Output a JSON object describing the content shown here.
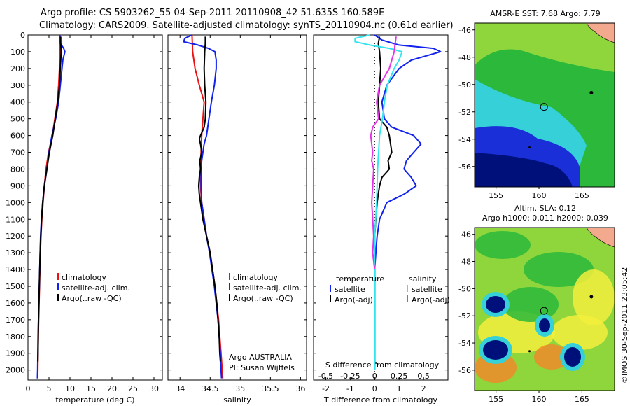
{
  "header": {
    "line1": "Argo profile: CS 5903262_55 04-Sep-2011 20110908_42 51.635S 160.589E",
    "line2": "Climatology: CARS2009. Satellite-adjusted climatology: synTS_20110904.nc (0.61d earlier)"
  },
  "maps": {
    "sst_title": "AMSR-E SST: 7.68  Argo: 7.79",
    "sla_title_line1": "Altim. SLA: 0.12",
    "sla_title_line2": "Argo h1000: 0.011  h2000: 0.039",
    "credit": "©IMOS 30-Sep-2011 23:05:42",
    "lat_ticks": [
      -46,
      -48,
      -50,
      -52,
      -54,
      -56
    ],
    "lon_ticks": [
      155,
      160,
      165
    ],
    "xlim": [
      152.5,
      168.8
    ],
    "ylim": [
      -57.5,
      -45.5
    ],
    "float_position": {
      "lon": 160.589,
      "lat": -51.635
    },
    "colors": {
      "deep": "#00107a",
      "cold": "#1a2fd8",
      "cyan": "#35d0d8",
      "green": "#2bb83b",
      "lime": "#8fd63c",
      "yellow": "#f4ee3c",
      "orange": "#f08a2a",
      "land": "#f3a98e"
    }
  },
  "colors": {
    "climatology": "#ee1111",
    "satellite": "#1122ee",
    "argo": "#000000",
    "s_satellite": "#33e6ee",
    "s_argo": "#e233e6"
  },
  "chart_data": [
    {
      "type": "line",
      "xlabel": "temperature (deg C)",
      "ylabel": "",
      "xlim": [
        0,
        32
      ],
      "ylim": [
        2060,
        0
      ],
      "xticks": [
        0,
        5,
        10,
        15,
        20,
        25,
        30
      ],
      "yticks": [
        0,
        100,
        200,
        300,
        400,
        500,
        600,
        700,
        800,
        900,
        1000,
        1100,
        1200,
        1300,
        1400,
        1500,
        1600,
        1700,
        1800,
        1900,
        2000
      ],
      "legend": [
        "climatology",
        "satellite-adj. clim.",
        "Argo(..raw -QC)"
      ],
      "series": [
        {
          "name": "climatology",
          "color": "#ee1111",
          "depth": [
            0,
            100,
            200,
            300,
            400,
            500,
            600,
            700,
            800,
            900,
            1000,
            1100,
            1200,
            1300,
            1400,
            1500,
            1600,
            1700,
            1800,
            1900,
            2000,
            2050
          ],
          "values": [
            7.6,
            7.6,
            7.5,
            7.3,
            7.0,
            6.4,
            5.8,
            4.9,
            4.3,
            3.9,
            3.6,
            3.3,
            3.1,
            2.95,
            2.85,
            2.75,
            2.65,
            2.55,
            2.45,
            2.4,
            2.35,
            2.3
          ]
        },
        {
          "name": "satellite-adj. clim.",
          "color": "#1122ee",
          "depth": [
            0,
            50,
            80,
            100,
            150,
            200,
            300,
            400,
            500,
            600,
            700,
            800,
            900,
            1000,
            1100,
            1200,
            1300,
            1400,
            1500,
            1600,
            1700,
            1800,
            1900,
            2000,
            2050
          ],
          "values": [
            7.6,
            7.7,
            8.5,
            8.8,
            8.3,
            8.1,
            7.7,
            7.3,
            6.6,
            5.7,
            5.0,
            4.5,
            3.9,
            3.5,
            3.2,
            3.0,
            2.9,
            2.8,
            2.7,
            2.6,
            2.5,
            2.4,
            2.35,
            2.3,
            2.25
          ]
        },
        {
          "name": "Argo(..raw -QC)",
          "color": "#000000",
          "depth": [
            10,
            50,
            100,
            150,
            200,
            300,
            400,
            500,
            600,
            700,
            800,
            900,
            1000,
            1100,
            1200,
            1300,
            1400,
            1500,
            1600,
            1700,
            1800,
            1900,
            1950
          ],
          "values": [
            7.79,
            7.8,
            7.9,
            7.8,
            7.7,
            7.5,
            7.1,
            6.5,
            5.9,
            5.1,
            4.5,
            3.9,
            3.5,
            3.25,
            3.05,
            2.9,
            2.8,
            2.7,
            2.6,
            2.5,
            2.45,
            2.4,
            2.35
          ]
        }
      ]
    },
    {
      "type": "line",
      "xlabel": "salinity",
      "ylabel": "",
      "xlim": [
        33.8,
        36.1
      ],
      "ylim": [
        2060,
        0
      ],
      "xticks": [
        34,
        34.5,
        35,
        35.5,
        36
      ],
      "yticks": [
        0,
        100,
        200,
        300,
        400,
        500,
        600,
        700,
        800,
        900,
        1000,
        1100,
        1200,
        1300,
        1400,
        1500,
        1600,
        1700,
        1800,
        1900,
        2000
      ],
      "legend": [
        "climatology",
        "satellite-adj. clim.",
        "Argo(..raw -QC)"
      ],
      "annotation": [
        "Argo AUSTRALIA",
        "PI: Susan Wijffels"
      ],
      "series": [
        {
          "name": "climatology",
          "color": "#ee1111",
          "depth": [
            0,
            100,
            200,
            300,
            400,
            500,
            600,
            700,
            800,
            900,
            1000,
            1100,
            1200,
            1300,
            1400,
            1500,
            1600,
            1700,
            1800,
            1900,
            2000,
            2050
          ],
          "values": [
            34.2,
            34.21,
            34.25,
            34.32,
            34.4,
            34.38,
            34.36,
            34.35,
            34.34,
            34.34,
            34.36,
            34.4,
            34.44,
            34.5,
            34.54,
            34.58,
            34.61,
            34.64,
            34.66,
            34.68,
            34.7,
            34.71
          ]
        },
        {
          "name": "satellite-adj. clim.",
          "color": "#1122ee",
          "depth": [
            0,
            20,
            40,
            60,
            80,
            100,
            150,
            200,
            300,
            400,
            500,
            600,
            650,
            700,
            750,
            800,
            900,
            1000,
            1100,
            1200,
            1300,
            1400,
            1500,
            1600,
            1700,
            1800,
            1900,
            2000,
            2050
          ],
          "values": [
            34.2,
            34.08,
            34.06,
            34.3,
            34.47,
            34.58,
            34.6,
            34.6,
            34.57,
            34.52,
            34.48,
            34.44,
            34.4,
            34.38,
            34.36,
            34.35,
            34.35,
            34.36,
            34.4,
            34.44,
            34.49,
            34.53,
            34.57,
            34.6,
            34.63,
            34.65,
            34.67,
            34.68,
            34.69
          ]
        },
        {
          "name": "Argo(..raw -QC)",
          "color": "#000000",
          "depth": [
            10,
            50,
            100,
            200,
            300,
            400,
            500,
            550,
            600,
            620,
            650,
            700,
            750,
            800,
            850,
            900,
            950,
            1000,
            1100,
            1200,
            1300,
            1400,
            1500,
            1600,
            1700,
            1800,
            1900,
            1950
          ],
          "values": [
            34.42,
            34.42,
            34.41,
            34.4,
            34.41,
            34.43,
            34.42,
            34.4,
            34.34,
            34.32,
            34.34,
            34.36,
            34.33,
            34.34,
            34.32,
            34.31,
            34.32,
            34.34,
            34.38,
            34.44,
            34.5,
            34.54,
            34.58,
            34.61,
            34.63,
            34.65,
            34.66,
            34.67
          ]
        }
      ]
    },
    {
      "type": "line",
      "xlabel": "T difference from climatology",
      "xlabel_top": "S difference from climatology",
      "ylabel": "",
      "xlim": [
        -2.5,
        3.0
      ],
      "ylim": [
        2060,
        0
      ],
      "xticks": [
        -2,
        -1,
        0,
        1,
        2
      ],
      "xtick_labels": [
        "-2",
        "-1",
        "0",
        "1",
        "2"
      ],
      "xticks_s": [
        -0.5,
        -0.25,
        0,
        0.25,
        0.5
      ],
      "yticks": [
        0,
        100,
        200,
        300,
        400,
        500,
        600,
        700,
        800,
        900,
        1000,
        1100,
        1200,
        1300,
        1400,
        1500,
        1600,
        1700,
        1800,
        1900,
        2000
      ],
      "legend_temperature": [
        "temperature",
        "satellite",
        "Argo(-adj)"
      ],
      "legend_salinity": [
        "salinity",
        "satellite",
        "Argo(-adj)"
      ],
      "series": [
        {
          "name": "satellite",
          "group": "temperature",
          "color": "#1122ee",
          "depth": [
            0,
            30,
            60,
            80,
            100,
            150,
            200,
            300,
            400,
            500,
            550,
            600,
            650,
            700,
            750,
            800,
            850,
            900,
            950,
            1000,
            1100,
            1200,
            1300,
            1400,
            1600,
            1800,
            2000
          ],
          "values": [
            0.0,
            0.3,
            1.0,
            2.4,
            2.7,
            1.5,
            1.0,
            0.5,
            0.3,
            0.4,
            0.7,
            1.6,
            1.9,
            1.6,
            1.3,
            1.2,
            1.5,
            1.7,
            1.2,
            0.5,
            0.2,
            0.1,
            0.05,
            0.0,
            0.0,
            0.0,
            0.0
          ]
        },
        {
          "name": "Argo(-adj)",
          "group": "temperature",
          "color": "#000000",
          "depth": [
            10,
            50,
            100,
            200,
            300,
            400,
            500,
            550,
            600,
            650,
            700,
            750,
            800,
            850,
            900,
            950,
            1000,
            1100,
            1200,
            1300,
            1400,
            1600,
            1800,
            1950
          ],
          "values": [
            0.2,
            0.15,
            0.2,
            0.25,
            0.2,
            0.15,
            0.2,
            0.5,
            0.6,
            0.65,
            0.7,
            0.55,
            0.6,
            0.3,
            0.2,
            0.15,
            0.1,
            0.05,
            0.0,
            0.0,
            0.0,
            0.0,
            0.0,
            0.0
          ]
        },
        {
          "name": "satellite",
          "group": "salinity",
          "color": "#33e6ee",
          "depth": [
            0,
            20,
            40,
            60,
            80,
            100,
            150,
            200,
            300,
            400,
            500,
            600,
            800,
            1000,
            1200,
            1400,
            1600,
            1800,
            2000
          ],
          "values": [
            -0.05,
            -0.2,
            -0.2,
            -0.05,
            0.15,
            0.28,
            0.25,
            0.2,
            0.13,
            0.1,
            0.08,
            0.05,
            0.03,
            0.02,
            0.0,
            0.0,
            0.0,
            0.0,
            0.0
          ]
        },
        {
          "name": "Argo(-adj)",
          "group": "salinity",
          "color": "#e233e6",
          "depth": [
            10,
            50,
            100,
            200,
            300,
            400,
            500,
            550,
            600,
            650,
            700,
            750,
            800,
            900,
            1000,
            1100,
            1200,
            1300,
            1400
          ],
          "values": [
            0.22,
            0.21,
            0.2,
            0.15,
            0.05,
            0.02,
            0.04,
            -0.02,
            -0.04,
            -0.03,
            -0.02,
            -0.03,
            -0.01,
            -0.02,
            -0.03,
            -0.02,
            -0.01,
            -0.02,
            0.0
          ]
        }
      ]
    }
  ]
}
